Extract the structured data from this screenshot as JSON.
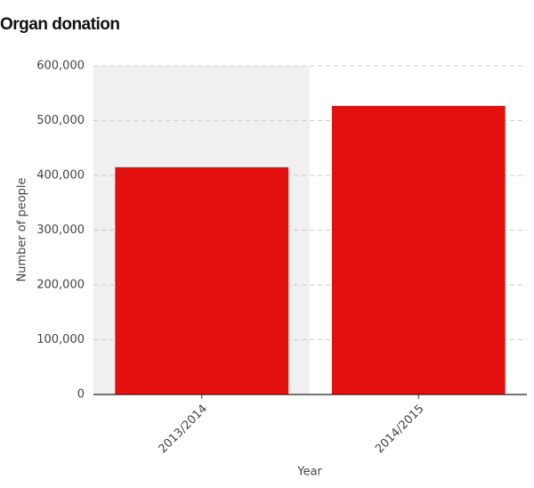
{
  "chart_data": {
    "type": "bar",
    "title": "Organ donation",
    "x_label": "Year",
    "y_label": "Number of people",
    "categories": [
      "2013/2014",
      "2014/2015"
    ],
    "values": [
      415000,
      527000
    ],
    "color": "#e31010",
    "ylim": [
      0,
      600000
    ],
    "yticks": [
      0,
      {
        "value": 100000,
        "label": "100,000"
      },
      {
        "value": 200000,
        "label": "200,000"
      },
      {
        "value": 300000,
        "label": "300,000"
      },
      {
        "value": 400000,
        "label": "400,000"
      },
      {
        "value": 500000,
        "label": "500,000"
      },
      {
        "value": 600000,
        "label": "600,000"
      }
    ],
    "grid": true
  }
}
